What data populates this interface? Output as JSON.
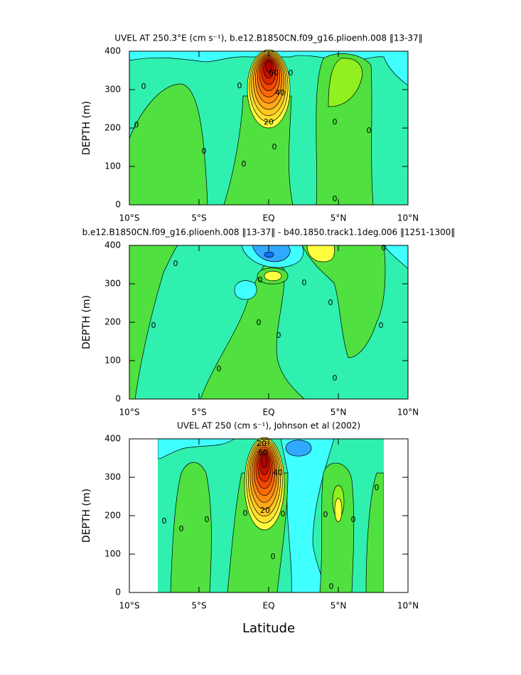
{
  "chart_data": [
    {
      "type": "contour",
      "title": "UVEL AT 250.3°E (cm s⁻¹), b.e12.B1850CN.f09_g16.plioenh.008 ‖13-37‖",
      "ylabel": "DEPTH (m)",
      "xlim": [
        -10,
        10
      ],
      "xticks": [
        {
          "value": -10,
          "label": "10°S"
        },
        {
          "value": -5,
          "label": "5°S"
        },
        {
          "value": 0,
          "label": "EQ"
        },
        {
          "value": 5,
          "label": "5°N"
        },
        {
          "value": 10,
          "label": "10°N"
        }
      ],
      "ylim": [
        400,
        0
      ],
      "yticks": [
        0,
        100,
        200,
        300,
        400
      ],
      "contour_labels": [
        "0",
        "0",
        "0",
        "0",
        "0",
        "0",
        "0",
        "0",
        "0",
        "0",
        "20",
        "40",
        "60"
      ]
    },
    {
      "type": "contour",
      "title": "b.e12.B1850CN.f09_g16.plioenh.008 ‖13-37‖ - b40.1850.track1.1deg.006 ‖1251-1300‖",
      "ylabel": "DEPTH (m)",
      "xlim": [
        -10,
        10
      ],
      "xticks": [
        {
          "value": -10,
          "label": "10°S"
        },
        {
          "value": -5,
          "label": "5°S"
        },
        {
          "value": 0,
          "label": "EQ"
        },
        {
          "value": 5,
          "label": "5°N"
        },
        {
          "value": 10,
          "label": "10°N"
        }
      ],
      "ylim": [
        400,
        0
      ],
      "yticks": [
        0,
        100,
        200,
        300,
        400
      ],
      "contour_labels": [
        "0",
        "0",
        "0",
        "0",
        "0",
        "0",
        "0",
        "0",
        "0",
        "0",
        "0"
      ]
    },
    {
      "type": "contour",
      "title": "UVEL AT 250 (cm s⁻¹), Johnson et al (2002)",
      "xlabel": "Latitude",
      "ylabel": "DEPTH (m)",
      "xlim": [
        -10,
        10
      ],
      "xticks": [
        {
          "value": -10,
          "label": "10°S"
        },
        {
          "value": -5,
          "label": "5°S"
        },
        {
          "value": 0,
          "label": "EQ"
        },
        {
          "value": 5,
          "label": "5°N"
        },
        {
          "value": 10,
          "label": "10°N"
        }
      ],
      "ylim": [
        400,
        0
      ],
      "yticks": [
        0,
        100,
        200,
        300,
        400
      ],
      "contour_labels": [
        "0",
        "0",
        "0",
        "0",
        "0",
        "0",
        "0",
        "0",
        "0",
        "0",
        "20",
        "20",
        "40",
        "60"
      ]
    }
  ]
}
